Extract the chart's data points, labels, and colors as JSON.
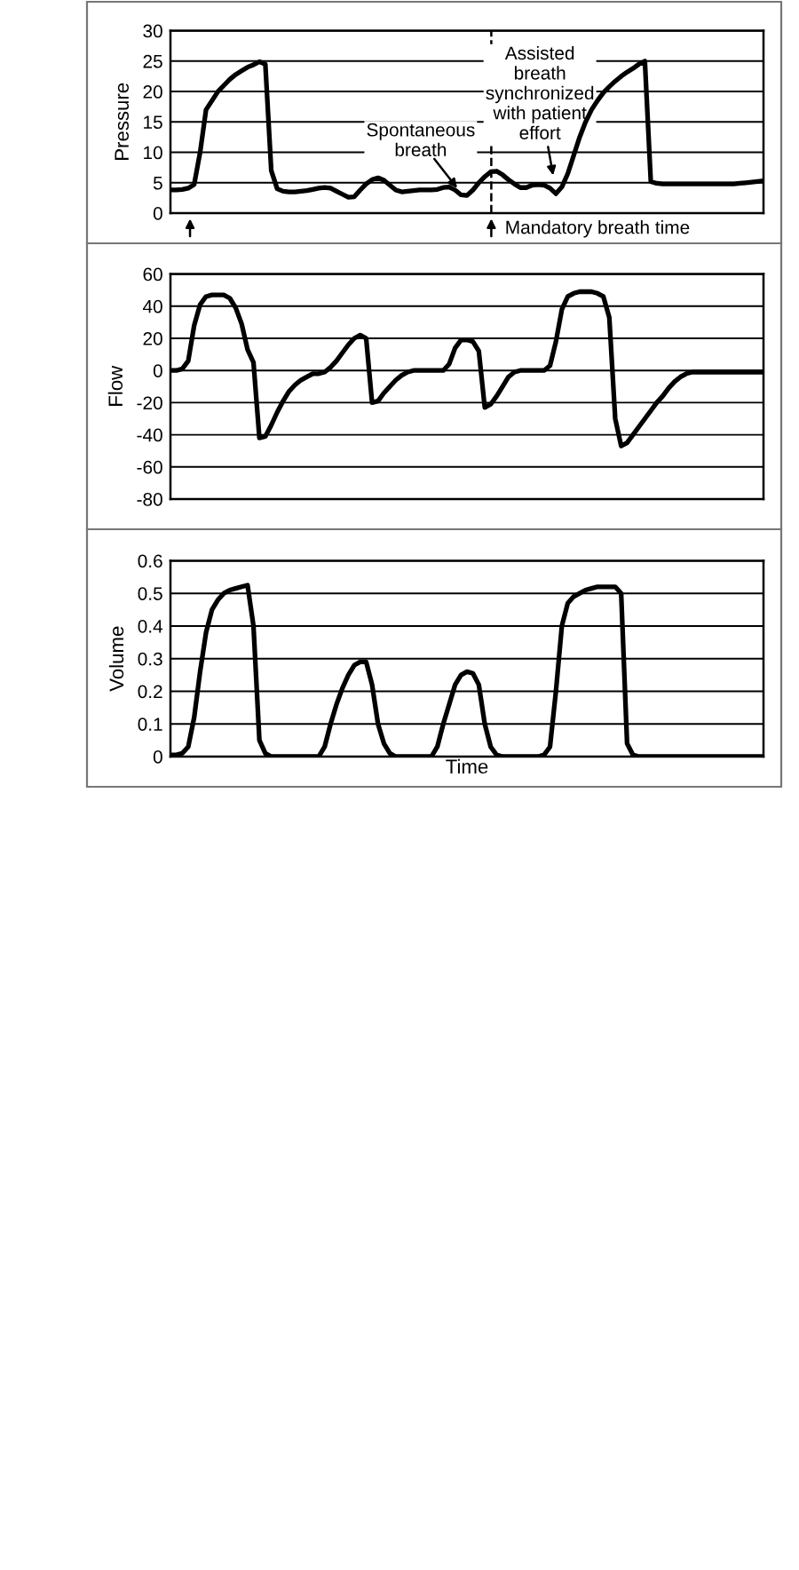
{
  "chart_data": [
    {
      "type": "line",
      "ylabel": "Pressure",
      "categories": [
        null,
        null,
        null,
        null,
        null,
        null,
        null,
        null,
        null,
        null,
        null,
        null,
        null,
        null,
        null,
        null,
        null,
        null,
        null,
        null,
        null,
        null,
        null,
        null,
        null,
        null,
        null,
        null,
        null,
        null,
        null,
        null,
        null,
        null,
        null,
        null,
        null,
        null,
        null,
        null,
        null,
        null,
        null,
        null,
        null,
        null,
        null,
        null,
        null,
        null,
        null,
        null,
        null,
        null,
        null,
        null,
        null,
        null,
        null,
        null,
        null,
        null,
        null,
        null,
        null,
        null,
        null,
        null,
        null,
        null,
        null,
        null,
        null,
        null,
        null,
        null,
        null,
        null,
        null,
        null,
        null,
        null,
        null,
        null,
        null,
        null,
        null,
        null,
        null,
        null,
        null,
        null,
        null,
        null,
        null,
        null,
        null,
        null,
        null,
        null,
        null
      ],
      "series": [
        {
          "color": "#000000",
          "values": [
            3.8,
            3.8,
            3.9,
            4.1,
            4.7,
            10,
            17,
            18.5,
            20,
            21,
            22,
            22.8,
            23.4,
            24,
            24.4,
            24.9,
            24.5,
            7,
            4,
            3.6,
            3.5,
            3.5,
            3.6,
            3.7,
            3.9,
            4.1,
            4.2,
            4.1,
            3.6,
            3.1,
            2.6,
            2.7,
            3.8,
            4.8,
            5.5,
            5.8,
            5.4,
            4.6,
            3.8,
            3.5,
            3.6,
            3.7,
            3.8,
            3.8,
            3.8,
            3.9,
            4.2,
            4.3,
            3.8,
            3.0,
            2.9,
            3.8,
            5.0,
            6.0,
            6.8,
            6.9,
            6.3,
            5.5,
            4.8,
            4.2,
            4.2,
            4.6,
            4.7,
            4.6,
            4.1,
            3.2,
            4.3,
            6.5,
            9.5,
            12.5,
            15,
            17,
            18.5,
            19.8,
            20.8,
            21.7,
            22.5,
            23.2,
            23.8,
            24.5,
            25,
            5.2,
            4.9,
            4.8,
            4.8,
            4.8,
            4.8,
            4.8,
            4.8,
            4.8,
            4.8,
            4.8,
            4.8,
            4.8,
            4.8,
            4.8,
            4.9,
            5.0,
            5.1,
            5.2,
            5.3
          ]
        }
      ],
      "ylim": [
        0,
        30
      ],
      "yticks": [
        0,
        5,
        10,
        15,
        20,
        25,
        30
      ],
      "grid": "y",
      "tick_labels": "y",
      "line_style": "solid",
      "annotations": [
        "Spontaneous\nbreath",
        "Assisted\nbreath\nsynchronized\nwith patient\neffort",
        "Mandatory breath time"
      ]
    },
    {
      "type": "line",
      "ylabel": "Flow",
      "categories": [
        null,
        null,
        null,
        null,
        null,
        null,
        null,
        null,
        null,
        null,
        null,
        null,
        null,
        null,
        null,
        null,
        null,
        null,
        null,
        null,
        null,
        null,
        null,
        null,
        null,
        null,
        null,
        null,
        null,
        null,
        null,
        null,
        null,
        null,
        null,
        null,
        null,
        null,
        null,
        null,
        null,
        null,
        null,
        null,
        null,
        null,
        null,
        null,
        null,
        null,
        null,
        null,
        null,
        null,
        null,
        null,
        null,
        null,
        null,
        null,
        null,
        null,
        null,
        null,
        null,
        null,
        null,
        null,
        null,
        null,
        null,
        null,
        null,
        null,
        null,
        null,
        null,
        null,
        null,
        null,
        null,
        null,
        null,
        null,
        null,
        null,
        null,
        null,
        null,
        null,
        null,
        null,
        null,
        null,
        null,
        null,
        null,
        null,
        null,
        null,
        null
      ],
      "series": [
        {
          "color": "#000000",
          "values": [
            0,
            0,
            1,
            6,
            28,
            41,
            46,
            47,
            47,
            47,
            45,
            39,
            29,
            13,
            5,
            -42,
            -41,
            -34,
            -26,
            -19,
            -13,
            -9,
            -6,
            -4,
            -2,
            -2,
            -1,
            2,
            6,
            11,
            16,
            20,
            22,
            20,
            -20,
            -19,
            -14,
            -10,
            -6,
            -3,
            -1,
            0,
            0,
            0,
            0,
            0,
            0,
            4,
            14,
            19,
            19,
            18,
            12,
            -23,
            -21,
            -16,
            -10,
            -4,
            -1,
            0,
            0,
            0,
            0,
            0,
            3,
            18,
            38,
            46,
            48,
            49,
            49,
            49,
            48,
            46,
            33,
            -30,
            -47,
            -45,
            -40,
            -35,
            -30,
            -25,
            -20,
            -16,
            -11,
            -7,
            -4,
            -2,
            -1,
            -1,
            -1,
            -1,
            -1,
            -1,
            -1,
            -1,
            -1,
            -1,
            -1,
            -1,
            -1
          ]
        }
      ],
      "ylim": [
        -80,
        60
      ],
      "yticks": [
        -80,
        -60,
        -40,
        -20,
        0,
        20,
        40,
        60
      ],
      "grid": "y",
      "tick_labels": "y",
      "line_style": "solid"
    },
    {
      "type": "line",
      "ylabel": "Volume",
      "xlabel": "Time",
      "categories": [
        null,
        null,
        null,
        null,
        null,
        null,
        null,
        null,
        null,
        null,
        null,
        null,
        null,
        null,
        null,
        null,
        null,
        null,
        null,
        null,
        null,
        null,
        null,
        null,
        null,
        null,
        null,
        null,
        null,
        null,
        null,
        null,
        null,
        null,
        null,
        null,
        null,
        null,
        null,
        null,
        null,
        null,
        null,
        null,
        null,
        null,
        null,
        null,
        null,
        null,
        null,
        null,
        null,
        null,
        null,
        null,
        null,
        null,
        null,
        null,
        null,
        null,
        null,
        null,
        null,
        null,
        null,
        null,
        null,
        null,
        null,
        null,
        null,
        null,
        null,
        null,
        null,
        null,
        null,
        null,
        null,
        null,
        null,
        null,
        null,
        null,
        null,
        null,
        null,
        null,
        null,
        null,
        null,
        null,
        null,
        null,
        null,
        null,
        null,
        null,
        null
      ],
      "series": [
        {
          "color": "#000000",
          "values": [
            0.005,
            0.005,
            0.01,
            0.03,
            0.12,
            0.26,
            0.38,
            0.45,
            0.48,
            0.5,
            0.51,
            0.515,
            0.52,
            0.525,
            0.4,
            0.05,
            0.01,
            0,
            0,
            0,
            0,
            0,
            0,
            0,
            0,
            0,
            0.03,
            0.1,
            0.16,
            0.21,
            0.25,
            0.28,
            0.29,
            0.29,
            0.22,
            0.1,
            0.04,
            0.01,
            0,
            0,
            0,
            0,
            0,
            0,
            0,
            0.03,
            0.1,
            0.16,
            0.22,
            0.25,
            0.26,
            0.255,
            0.22,
            0.1,
            0.03,
            0.005,
            0,
            0,
            0,
            0,
            0,
            0,
            0,
            0.005,
            0.03,
            0.2,
            0.4,
            0.47,
            0.49,
            0.5,
            0.51,
            0.515,
            0.52,
            0.52,
            0.52,
            0.52,
            0.5,
            0.04,
            0.005,
            0,
            0,
            0,
            0,
            0,
            0,
            0,
            0,
            0,
            0,
            0,
            0,
            0,
            0,
            0,
            0,
            0,
            0,
            0,
            0,
            0,
            0
          ]
        }
      ],
      "ylim": [
        0,
        0.6
      ],
      "yticks": [
        0,
        0.1,
        0.2,
        0.3,
        0.4,
        0.5,
        0.6
      ],
      "grid": "y",
      "tick_labels": "y",
      "line_style": "solid"
    }
  ]
}
